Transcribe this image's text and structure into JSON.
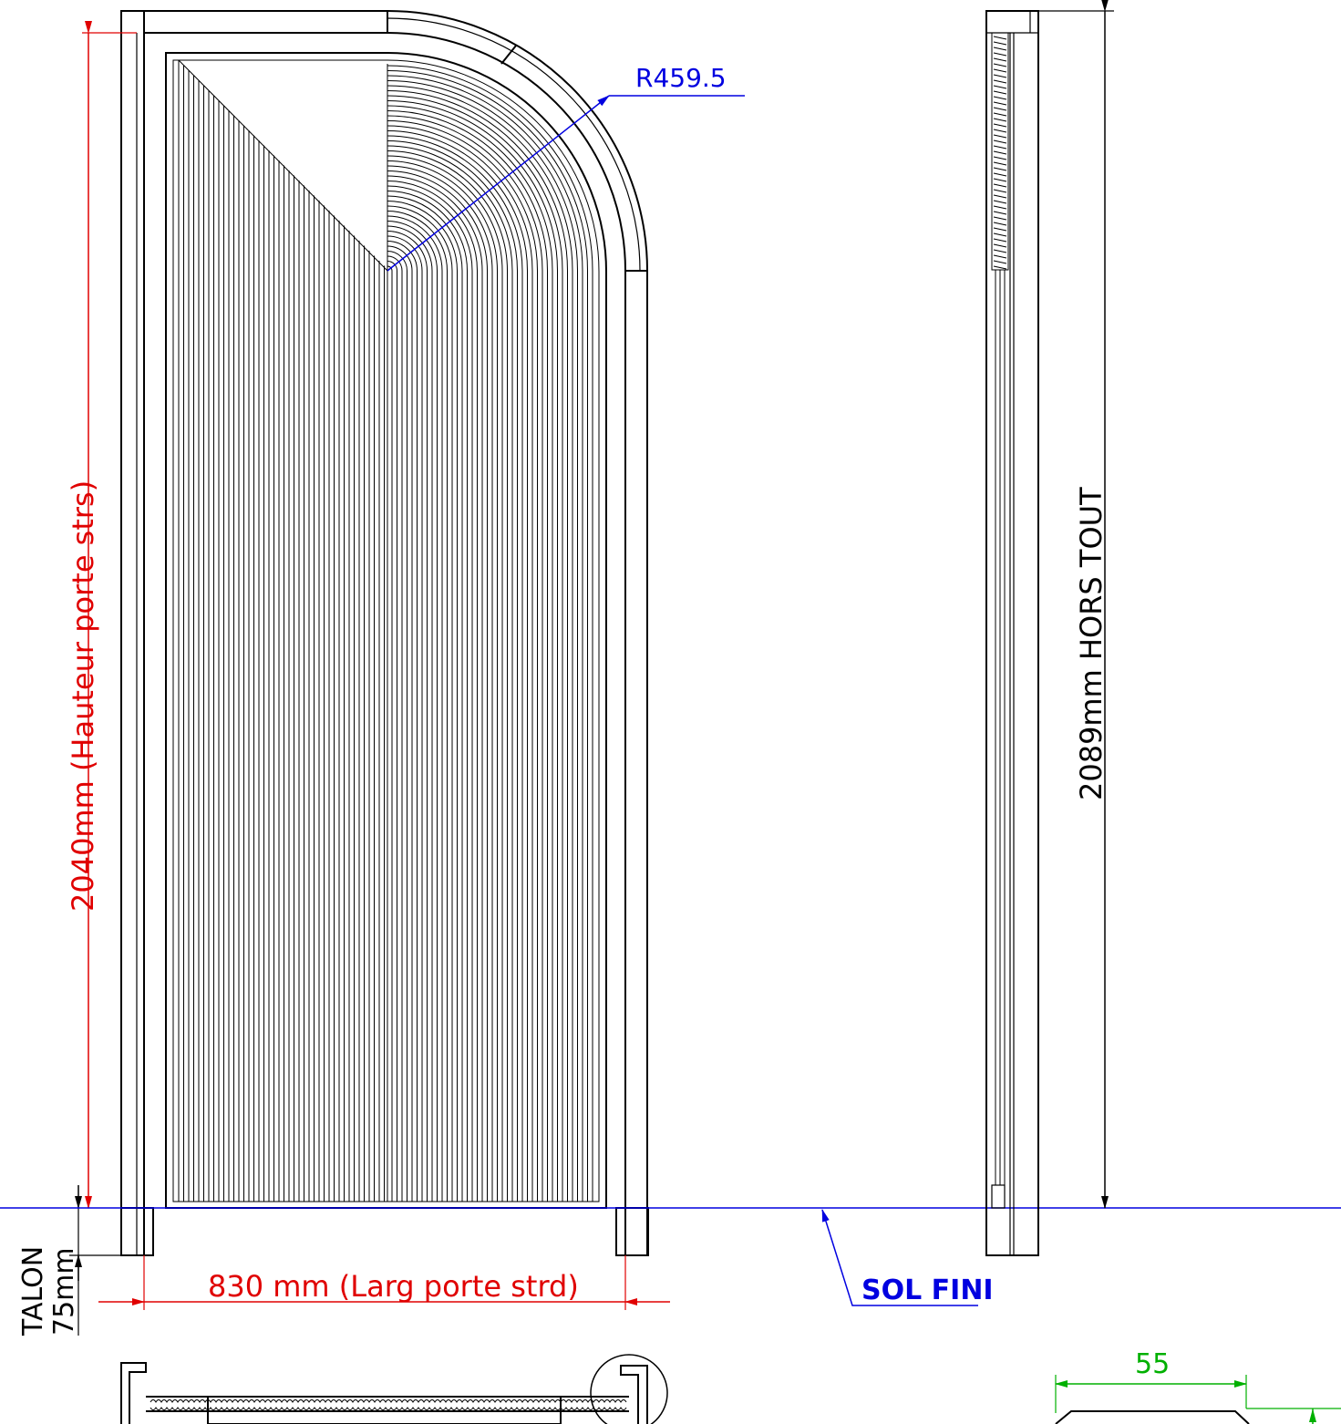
{
  "drawing": {
    "radius_label": "R459.5",
    "door_height_label": "2040mm (Hauteur porte strs)",
    "overall_height_label": "2089mm HORS TOUT",
    "door_width_label": "830 mm (Larg porte strd)",
    "heel_label_line1": "TALON",
    "heel_label_line2": "75mm",
    "floor_label": "SOL FINI",
    "depth_label": "55"
  },
  "colors": {
    "dimension_height": "#e00000",
    "dimension_radius": "#0000e0",
    "floor_line": "#0000e0",
    "detail_dimension": "#00b000",
    "outline": "#000000"
  }
}
